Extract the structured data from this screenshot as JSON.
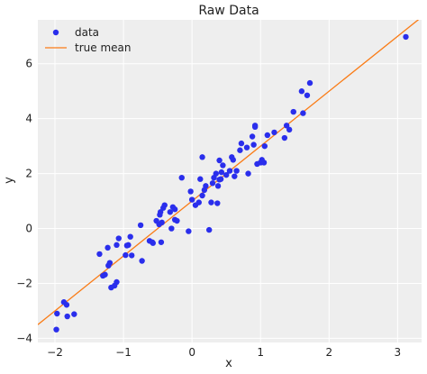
{
  "chart_data": {
    "type": "scatter",
    "title": "Raw Data",
    "xlabel": "x",
    "ylabel": "y",
    "xlim": [
      -2.25,
      3.35
    ],
    "ylim": [
      -4.15,
      7.6
    ],
    "x_ticks": [
      -2,
      -1,
      0,
      1,
      2,
      3
    ],
    "y_ticks": [
      -4,
      -2,
      0,
      2,
      4,
      6
    ],
    "x_tick_labels": [
      "−2",
      "−1",
      "0",
      "1",
      "2",
      "3"
    ],
    "y_tick_labels": [
      "−4",
      "−2",
      "0",
      "2",
      "4",
      "6"
    ],
    "grid": true,
    "legend_position": "top-left",
    "legend": [
      {
        "label": "data",
        "kind": "marker",
        "color": "#2a2eec"
      },
      {
        "label": "true mean",
        "kind": "line",
        "color": "#fa7c17"
      }
    ],
    "series": [
      {
        "name": "data",
        "kind": "scatter",
        "color": "#2a2eec",
        "points": [
          [
            -1.98,
            -3.68
          ],
          [
            -1.97,
            -3.1
          ],
          [
            -1.87,
            -2.68
          ],
          [
            -1.83,
            -2.78
          ],
          [
            -1.82,
            -3.2
          ],
          [
            -1.72,
            -3.12
          ],
          [
            -1.35,
            -0.93
          ],
          [
            -1.3,
            -1.72
          ],
          [
            -1.27,
            -1.68
          ],
          [
            -1.23,
            -0.7
          ],
          [
            -1.22,
            -1.35
          ],
          [
            -1.2,
            -1.25
          ],
          [
            -1.18,
            -2.15
          ],
          [
            -1.13,
            -2.08
          ],
          [
            -1.1,
            -1.95
          ],
          [
            -1.1,
            -0.6
          ],
          [
            -1.07,
            -0.36
          ],
          [
            -0.97,
            -0.97
          ],
          [
            -0.95,
            -0.62
          ],
          [
            -0.93,
            -0.6
          ],
          [
            -0.9,
            -0.3
          ],
          [
            -0.88,
            -0.98
          ],
          [
            -0.75,
            0.12
          ],
          [
            -0.73,
            -1.18
          ],
          [
            -0.62,
            -0.45
          ],
          [
            -0.58,
            -0.5
          ],
          [
            -0.57,
            -0.53
          ],
          [
            -0.52,
            0.28
          ],
          [
            -0.48,
            0.15
          ],
          [
            -0.47,
            0.5
          ],
          [
            -0.46,
            0.6
          ],
          [
            -0.45,
            -0.5
          ],
          [
            -0.44,
            0.22
          ],
          [
            -0.42,
            0.75
          ],
          [
            -0.4,
            0.85
          ],
          [
            -0.32,
            0.6
          ],
          [
            -0.3,
            0.0
          ],
          [
            -0.28,
            0.78
          ],
          [
            -0.25,
            0.7
          ],
          [
            -0.25,
            0.32
          ],
          [
            -0.22,
            0.28
          ],
          [
            -0.15,
            1.85
          ],
          [
            -0.05,
            -0.1
          ],
          [
            -0.02,
            1.35
          ],
          [
            0.0,
            1.05
          ],
          [
            0.05,
            0.85
          ],
          [
            0.1,
            0.95
          ],
          [
            0.12,
            1.8
          ],
          [
            0.15,
            2.6
          ],
          [
            0.15,
            1.2
          ],
          [
            0.18,
            1.4
          ],
          [
            0.2,
            1.55
          ],
          [
            0.25,
            -0.05
          ],
          [
            0.28,
            0.95
          ],
          [
            0.3,
            1.65
          ],
          [
            0.32,
            1.85
          ],
          [
            0.35,
            2.0
          ],
          [
            0.37,
            0.92
          ],
          [
            0.38,
            1.55
          ],
          [
            0.4,
            1.78
          ],
          [
            0.4,
            2.48
          ],
          [
            0.42,
            1.8
          ],
          [
            0.43,
            2.05
          ],
          [
            0.45,
            2.3
          ],
          [
            0.5,
            1.95
          ],
          [
            0.55,
            2.1
          ],
          [
            0.58,
            2.6
          ],
          [
            0.6,
            2.5
          ],
          [
            0.62,
            1.9
          ],
          [
            0.65,
            2.1
          ],
          [
            0.7,
            2.85
          ],
          [
            0.72,
            3.1
          ],
          [
            0.8,
            2.95
          ],
          [
            0.82,
            2.0
          ],
          [
            0.88,
            3.35
          ],
          [
            0.9,
            3.05
          ],
          [
            0.92,
            3.7
          ],
          [
            0.92,
            3.75
          ],
          [
            0.95,
            2.35
          ],
          [
            1.0,
            2.4
          ],
          [
            1.02,
            2.5
          ],
          [
            1.05,
            2.4
          ],
          [
            1.06,
            3.0
          ],
          [
            1.1,
            3.4
          ],
          [
            1.2,
            3.5
          ],
          [
            1.35,
            3.3
          ],
          [
            1.38,
            3.75
          ],
          [
            1.42,
            3.6
          ],
          [
            1.48,
            4.25
          ],
          [
            1.6,
            5.0
          ],
          [
            1.62,
            4.2
          ],
          [
            1.68,
            4.85
          ],
          [
            1.72,
            5.3
          ],
          [
            3.12,
            6.98
          ]
        ]
      },
      {
        "name": "true mean",
        "kind": "line",
        "color": "#fa7c17",
        "points": [
          [
            -2.25,
            -3.5
          ],
          [
            3.35,
            7.7
          ]
        ]
      }
    ]
  }
}
